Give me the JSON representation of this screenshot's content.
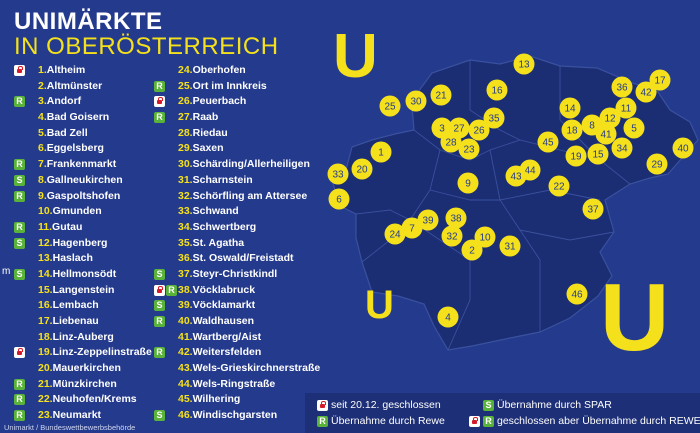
{
  "title_line1": "UNIMÄRKTE",
  "title_line2": "IN OBERÖSTERREICH",
  "colors": {
    "background": "#243a8c",
    "accent": "#f5e11b",
    "rewe_green": "#59b33a",
    "lock_red": "#d41b2a"
  },
  "column1": [
    {
      "badges": [
        "lock"
      ],
      "num": "1.",
      "name": "Altheim"
    },
    {
      "badges": [],
      "num": "2.",
      "name": "Altmünster"
    },
    {
      "badges": [
        "rewe"
      ],
      "num": "3.",
      "name": "Andorf"
    },
    {
      "badges": [],
      "num": "4.",
      "name": "Bad Goisern"
    },
    {
      "badges": [],
      "num": "5.",
      "name": "Bad Zell"
    },
    {
      "badges": [],
      "num": "6.",
      "name": "Eggelsberg"
    },
    {
      "badges": [
        "rewe"
      ],
      "num": "7.",
      "name": "Frankenmarkt"
    },
    {
      "badges": [
        "spar"
      ],
      "num": "8.",
      "name": "Gallneukirchen"
    },
    {
      "badges": [
        "rewe"
      ],
      "num": "9.",
      "name": "Gaspoltshofen"
    },
    {
      "badges": [],
      "num": "10.",
      "name": "Gmunden"
    },
    {
      "badges": [
        "rewe"
      ],
      "num": "11.",
      "name": "Gutau"
    },
    {
      "badges": [
        "spar"
      ],
      "num": "12.",
      "name": "Hagenberg"
    },
    {
      "badges": [],
      "num": "13.",
      "name": "Haslach"
    },
    {
      "badges": [
        "spar"
      ],
      "num": "14.",
      "name": "Hellmonsödt"
    },
    {
      "badges": [],
      "num": "15.",
      "name": "Langenstein"
    },
    {
      "badges": [],
      "num": "16.",
      "name": "Lembach"
    },
    {
      "badges": [],
      "num": "17.",
      "name": "Liebenau"
    },
    {
      "badges": [],
      "num": "18.",
      "name": "Linz-Auberg"
    },
    {
      "badges": [
        "lock"
      ],
      "num": "19.",
      "name": "Linz-Zeppelinstraße"
    },
    {
      "badges": [],
      "num": "20.",
      "name": "Mauerkirchen"
    },
    {
      "badges": [
        "rewe"
      ],
      "num": "21.",
      "name": "Münzkirchen"
    },
    {
      "badges": [
        "rewe"
      ],
      "num": "22.",
      "name": "Neuhofen/Krems"
    },
    {
      "badges": [
        "rewe"
      ],
      "num": "23.",
      "name": "Neumarkt"
    }
  ],
  "column2": [
    {
      "badges": [],
      "num": "24.",
      "name": "Oberhofen"
    },
    {
      "badges": [
        "rewe"
      ],
      "num": "25.",
      "name": "Ort im Innkreis"
    },
    {
      "badges": [
        "lock"
      ],
      "num": "26.",
      "name": "Peuerbach"
    },
    {
      "badges": [
        "rewe"
      ],
      "num": "27.",
      "name": "Raab"
    },
    {
      "badges": [],
      "num": "28.",
      "name": "Riedau"
    },
    {
      "badges": [],
      "num": "29.",
      "name": "Saxen"
    },
    {
      "badges": [],
      "num": "30.",
      "name": "Schärding/Allerheiligen"
    },
    {
      "badges": [],
      "num": "31.",
      "name": "Scharnstein"
    },
    {
      "badges": [],
      "num": "32.",
      "name": "Schörfling am Attersee"
    },
    {
      "badges": [],
      "num": "33.",
      "name": "Schwand"
    },
    {
      "badges": [],
      "num": "34.",
      "name": "Schwertberg"
    },
    {
      "badges": [],
      "num": "35.",
      "name": "St. Agatha"
    },
    {
      "badges": [],
      "num": "36.",
      "name": "St. Oswald/Freistadt"
    },
    {
      "badges": [
        "spar"
      ],
      "num": "37.",
      "name": "Steyr-Christkindl"
    },
    {
      "badges": [
        "lock",
        "rewe"
      ],
      "num": "38.",
      "name": "Vöcklabruck"
    },
    {
      "badges": [
        "spar"
      ],
      "num": "39.",
      "name": "Vöcklamarkt"
    },
    {
      "badges": [
        "rewe"
      ],
      "num": "40.",
      "name": "Waldhausen"
    },
    {
      "badges": [],
      "num": "41.",
      "name": "Wartberg/Aist"
    },
    {
      "badges": [
        "rewe"
      ],
      "num": "42.",
      "name": "Weitersfelden"
    },
    {
      "badges": [],
      "num": "43.",
      "name": "Wels-Grieskirchnerstraße"
    },
    {
      "badges": [],
      "num": "44.",
      "name": "Wels-Ringstraße"
    },
    {
      "badges": [],
      "num": "45.",
      "name": "Wilhering"
    },
    {
      "badges": [
        "spar"
      ],
      "num": "46.",
      "name": "Windischgarsten"
    }
  ],
  "legend": {
    "closed": "seit 20.12. geschlossen",
    "rewe": "Übernahme durch Rewe",
    "spar": "Übernahme durch SPAR",
    "closed_rewe": "geschlossen aber Übernahme durch REWE"
  },
  "source": "Unimarkt / Bundeswettbewerbsbehörde",
  "stray_text": "m",
  "logo_letter": "U",
  "map_markers": [
    "13",
    "16",
    "17",
    "42",
    "36",
    "11",
    "14",
    "5",
    "12",
    "18",
    "8",
    "41",
    "15",
    "34",
    "19",
    "45",
    "29",
    "40",
    "30",
    "21",
    "35",
    "3",
    "27",
    "26",
    "28",
    "23",
    "1",
    "20",
    "33",
    "6",
    "44",
    "43",
    "22",
    "9",
    "37",
    "38",
    "39",
    "7",
    "24",
    "32",
    "10",
    "2",
    "31",
    "46",
    "4",
    "25"
  ]
}
